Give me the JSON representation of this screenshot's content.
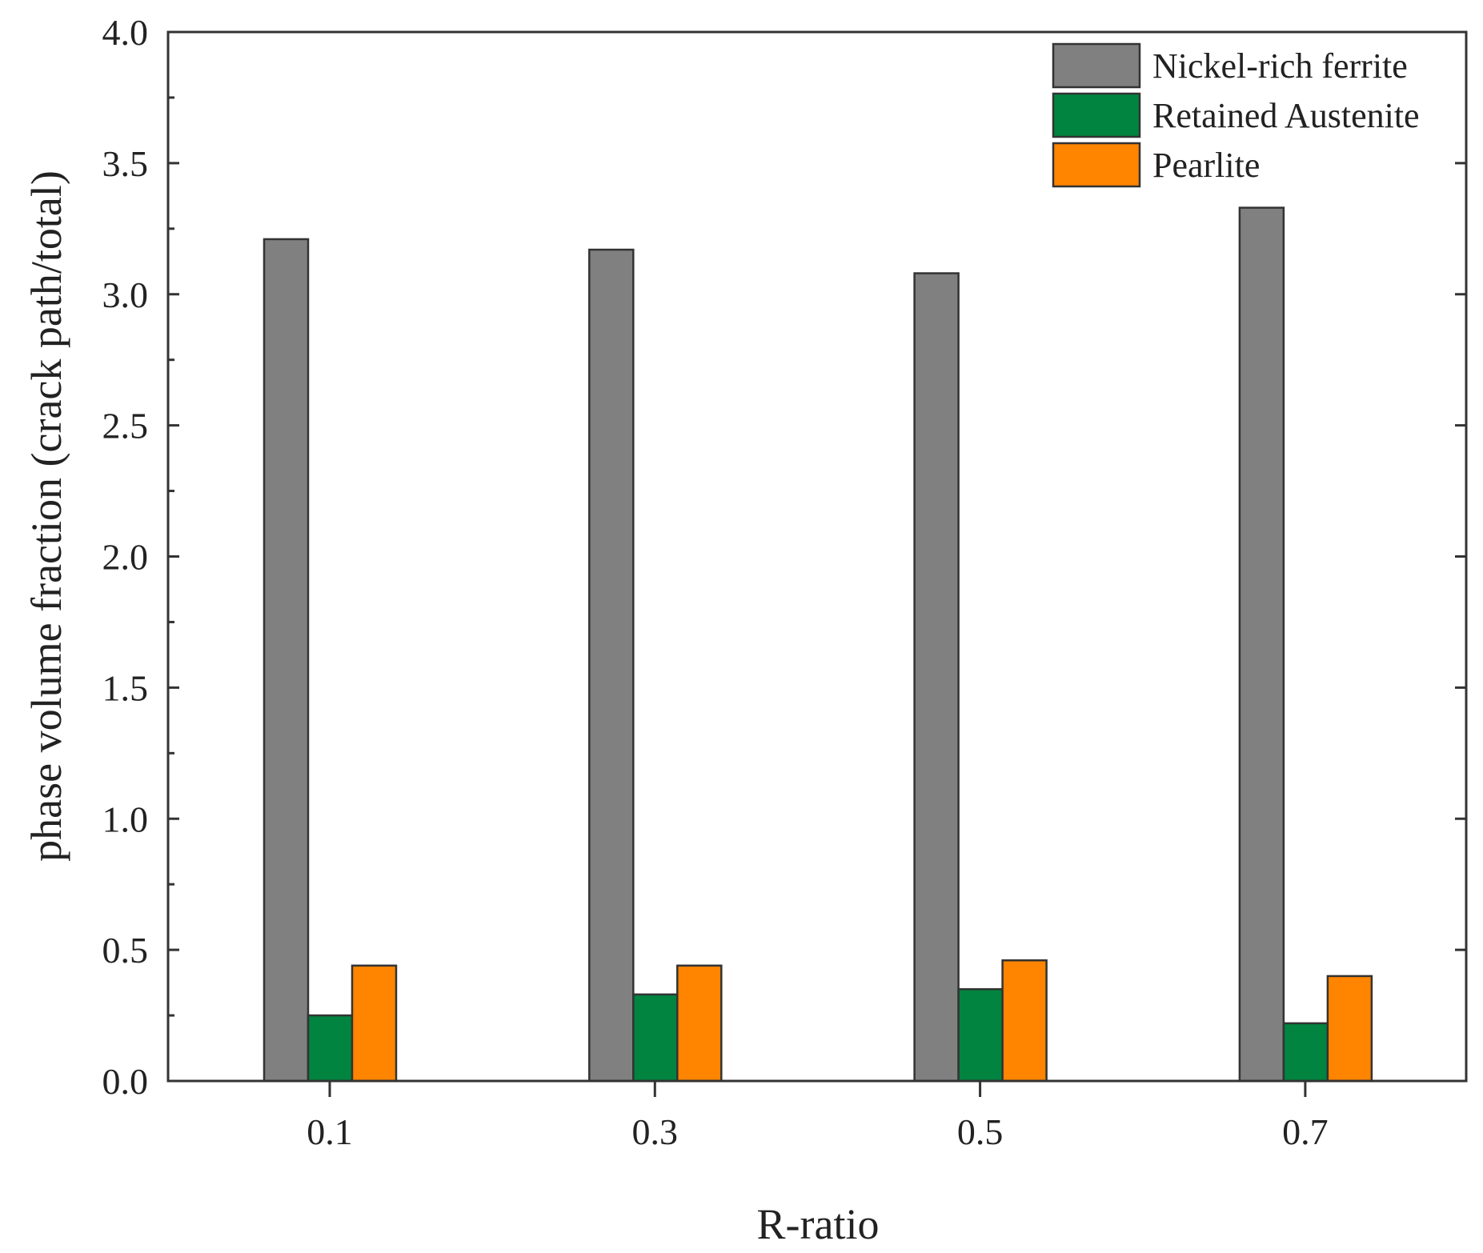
{
  "chart_data": {
    "type": "bar",
    "xlabel": "R-ratio",
    "ylabel": "phase volume fraction (crack path/total)",
    "categories": [
      "0.1",
      "0.3",
      "0.5",
      "0.7"
    ],
    "ylim": [
      0.0,
      4.0
    ],
    "yticks": [
      "0.0",
      "0.5",
      "1.0",
      "1.5",
      "2.0",
      "2.5",
      "3.0",
      "3.5",
      "4.0"
    ],
    "grid": false,
    "legend_position": "top-right",
    "series": [
      {
        "name": "Nickel-rich ferrite",
        "color": "#808080",
        "values": [
          3.21,
          3.17,
          3.08,
          3.33
        ]
      },
      {
        "name": "Retained Austenite",
        "color": "#00843f",
        "values": [
          0.25,
          0.33,
          0.35,
          0.22
        ]
      },
      {
        "name": "Pearlite",
        "color": "#ff8400",
        "values": [
          0.44,
          0.44,
          0.46,
          0.4
        ]
      }
    ]
  }
}
